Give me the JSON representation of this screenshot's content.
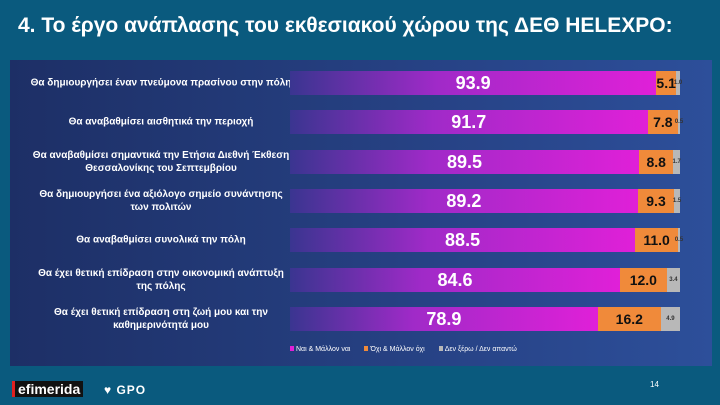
{
  "title": "4. Το έργο ανάπλασης του εκθεσιακού χώρου της ΔΕΘ HELEXPO:",
  "chart_data": {
    "type": "bar",
    "stacked": true,
    "orientation": "horizontal",
    "categories": [
      "Θα δημιουργήσει έναν πνεύμονα πρασίνου στην πόλη",
      "Θα αναβαθμίσει αισθητικά την περιοχή",
      "Θα αναβαθμίσει σημαντικά την Ετήσια Διεθνή Έκθεση Θεσσαλονίκης του Σεπτεμβρίου",
      "Θα δημιουργήσει ένα αξιόλογο σημείο συνάντησης των πολιτών",
      "Θα αναβαθμίσει συνολικά την πόλη",
      "Θα έχει θετική επίδραση στην οικονομική ανάπτυξη της πόλης",
      "Θα έχει θετική επίδραση στη ζωή μου και την καθημερινότητά μου"
    ],
    "series": [
      {
        "name": "Ναι & Μάλλον ναι",
        "color": "#e020d8",
        "values": [
          "93.9",
          "91.7",
          "89.5",
          "89.2",
          "88.5",
          "84.6",
          "78.9"
        ]
      },
      {
        "name": "Όχι & Μάλλον όχι",
        "color": "#f08a3a",
        "values": [
          "5.1",
          "7.8",
          "8.8",
          "9.3",
          "11.0",
          "12.0",
          "16.2"
        ]
      },
      {
        "name": "Δεν ξέρω / Δεν απαντώ",
        "color": "#b8b8b8",
        "values": [
          "1.0",
          "0.5",
          "1.7",
          "1.5",
          "0.5",
          "3.4",
          "4.9"
        ]
      }
    ],
    "xlim": [
      0,
      100
    ]
  },
  "footer": {
    "brand1": "efimerida",
    "brand2": "GPO",
    "page": "14"
  }
}
